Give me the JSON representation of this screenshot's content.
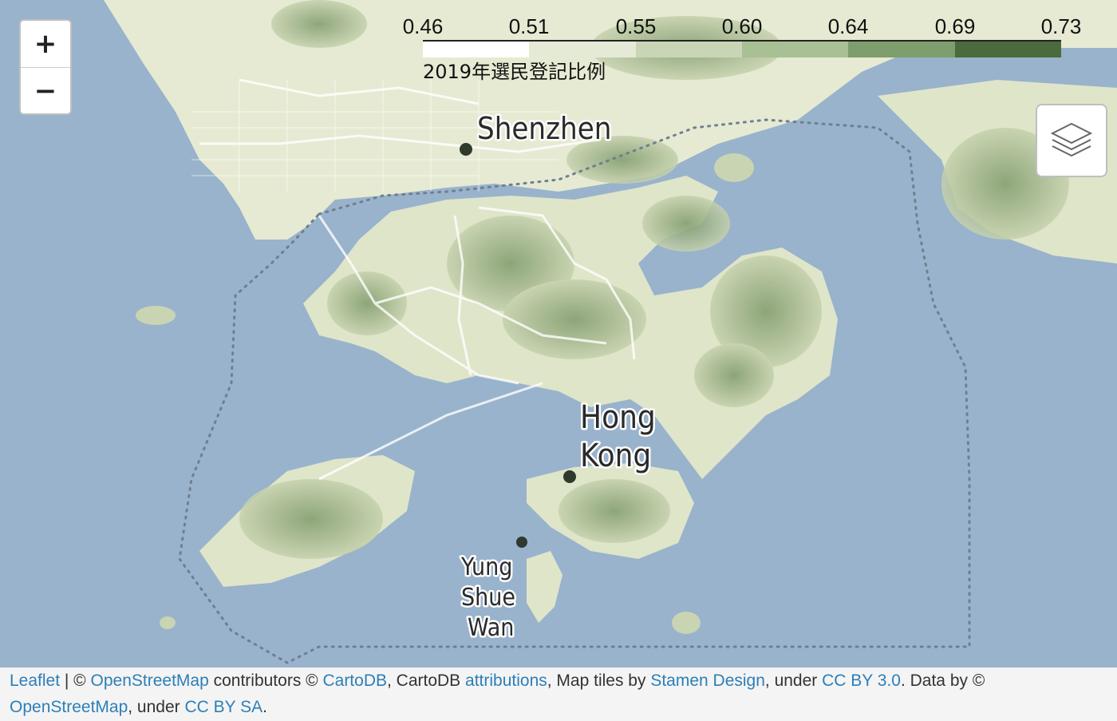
{
  "controls": {
    "zoom_in_label": "+",
    "zoom_out_label": "−",
    "layers_icon": "layers-icon"
  },
  "legend": {
    "ticks": [
      "0.46",
      "0.51",
      "0.55",
      "0.60",
      "0.64",
      "0.69",
      "0.73"
    ],
    "caption": "2019年選民登記比例",
    "colors": [
      "#ffffff",
      "#e4ead6",
      "#c9d6b6",
      "#a9bf94",
      "#7f9e6d",
      "#4b6a3e"
    ]
  },
  "places": {
    "shenzhen": "Shenzhen",
    "hong_kong_1": "Hong",
    "hong_kong_2": "Kong",
    "yung_shue_wan_1": "Yung",
    "yung_shue_wan_2": "Shue",
    "yung_shue_wan_3": "Wan"
  },
  "colors": {
    "water": "#99b3cc",
    "land": "#e6ead3",
    "terrain_dark": "#8ea57a",
    "road": "#ffffff"
  },
  "attribution": {
    "leaflet": "Leaflet",
    "sep1": " | © ",
    "osm": "OpenStreetMap",
    "contrib": " contributors © ",
    "cartodb": "CartoDB",
    "cartodb_text": ", CartoDB ",
    "attributions": "attributions",
    "tiles_by": ", Map tiles by ",
    "stamen": "Stamen Design",
    "under1": ", under ",
    "ccby": "CC BY 3.0",
    "data_by": ". Data by © ",
    "osm2": "OpenStreetMap",
    "under2": ", under ",
    "ccbysa": "CC BY SA",
    "end": "."
  }
}
